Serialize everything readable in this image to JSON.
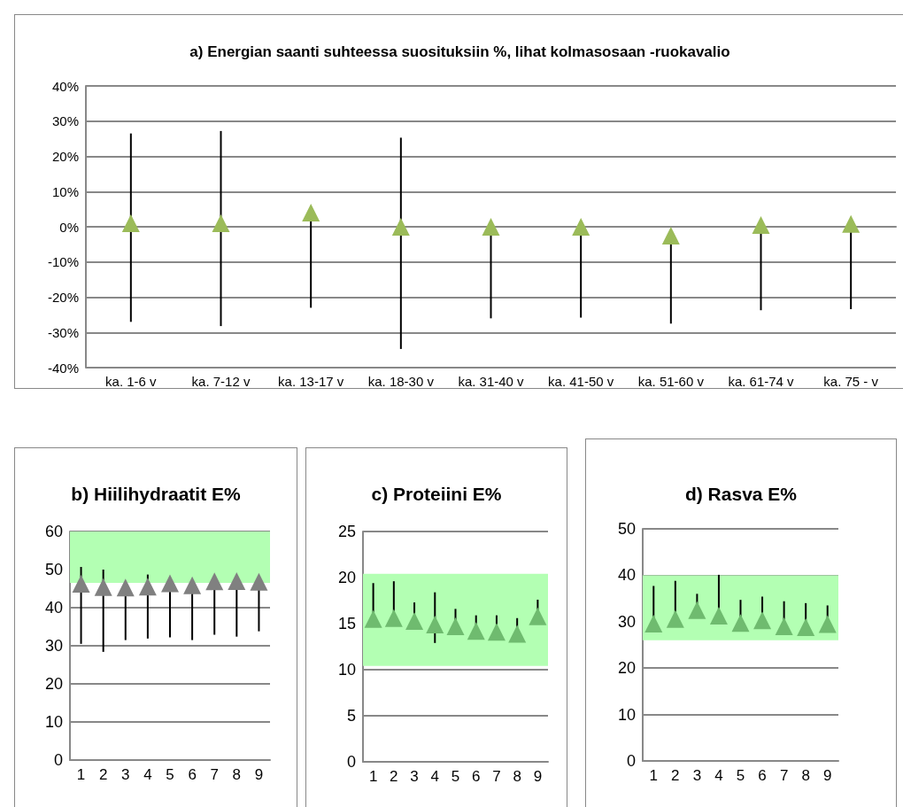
{
  "chart_data": [
    {
      "type": "scatter",
      "title": "a) Energian saanti suhteessa suosituksiin %, lihat kolmasosaan -ruokavalio",
      "categories": [
        "ka. 1-6 v",
        "ka. 7-12 v",
        "ka. 13-17 v",
        "ka. 18-30 v",
        "ka. 31-40 v",
        "ka. 41-50 v",
        "ka. 51-60 v",
        "ka. 61-74 v",
        "ka. 75 - v"
      ],
      "values": [
        1,
        1,
        4,
        0,
        0,
        0,
        -2.5,
        0.5,
        0.8
      ],
      "errors": [
        [
          -27,
          26.5
        ],
        [
          -28.2,
          27.2
        ],
        [
          -23,
          4
        ],
        [
          -34.7,
          25.3
        ],
        [
          -26,
          0
        ],
        [
          -25.8,
          0
        ],
        [
          -27.5,
          -2.5
        ],
        [
          -23.7,
          0.5
        ],
        [
          -23.4,
          0.8
        ]
      ],
      "color": "#9bbb59",
      "marker": "triangle",
      "grid": "y",
      "ylim": [
        -40,
        40
      ],
      "yticks": [
        {
          "value": -40,
          "label": "-40%"
        },
        {
          "value": -30,
          "label": "-30%"
        },
        {
          "value": -20,
          "label": "-20%"
        },
        {
          "value": -10,
          "label": "-10%"
        },
        {
          "value": 0,
          "label": "0%"
        },
        {
          "value": 10,
          "label": "10%"
        },
        {
          "value": 20,
          "label": "20%"
        },
        {
          "value": 30,
          "label": "30%"
        },
        {
          "value": 40,
          "label": "40%"
        }
      ]
    },
    {
      "type": "scatter",
      "title": "b) Hiilihydraatit E%",
      "categories": [
        "1",
        "2",
        "3",
        "4",
        "5",
        "6",
        "7",
        "8",
        "9"
      ],
      "values": [
        46.3,
        45.4,
        45.3,
        45.5,
        46.4,
        45.9,
        46.9,
        47,
        46.8
      ],
      "errors": [
        [
          30.5,
          50.7
        ],
        [
          28.4,
          50
        ],
        [
          31.5,
          45.3
        ],
        [
          31.9,
          48.7
        ],
        [
          32.2,
          46.4
        ],
        [
          31.5,
          45.9
        ],
        [
          32.9,
          46.9
        ],
        [
          32.4,
          47
        ],
        [
          33.8,
          46.8
        ]
      ],
      "color": "#808080",
      "marker": "triangle",
      "grid": "y",
      "ylim": [
        0,
        60
      ],
      "yticks": [
        0,
        10,
        20,
        30,
        40,
        50,
        60
      ],
      "bands": [
        {
          "axis": "y",
          "from": 46.5,
          "to": 60,
          "color": "#b3ffb3"
        }
      ]
    },
    {
      "type": "scatter",
      "title": "c) Proteiini E%",
      "categories": [
        "1",
        "2",
        "3",
        "4",
        "5",
        "6",
        "7",
        "8",
        "9"
      ],
      "values": [
        15.5,
        15.6,
        15.3,
        14.9,
        14.7,
        14.2,
        14.1,
        13.9,
        15.8
      ],
      "errors": [
        [
          15.5,
          19.4
        ],
        [
          15.6,
          19.6
        ],
        [
          15.3,
          17.3
        ],
        [
          12.9,
          18.4
        ],
        [
          14.7,
          16.6
        ],
        [
          14.2,
          15.9
        ],
        [
          14.1,
          15.9
        ],
        [
          13,
          15.6
        ],
        [
          15.8,
          17.6
        ]
      ],
      "color": "#6fbb6f",
      "marker": "triangle",
      "grid": "y",
      "ylim": [
        0,
        25
      ],
      "yticks": [
        0,
        5,
        10,
        15,
        20,
        25
      ],
      "bands": [
        {
          "axis": "y",
          "from": 10.4,
          "to": 20.4,
          "color": "#b3ffb3"
        }
      ]
    },
    {
      "type": "scatter",
      "title": "d) Rasva E%",
      "categories": [
        "1",
        "2",
        "3",
        "4",
        "5",
        "6",
        "7",
        "8",
        "9"
      ],
      "values": [
        29.6,
        30.6,
        32.5,
        31.3,
        29.7,
        30.3,
        29,
        28.8,
        29.5
      ],
      "errors": [
        [
          29.6,
          37.7
        ],
        [
          30.6,
          38.8
        ],
        [
          32.5,
          36
        ],
        [
          31.3,
          40.1
        ],
        [
          29.7,
          34.7
        ],
        [
          30.3,
          35.4
        ],
        [
          29,
          34.4
        ],
        [
          28.8,
          34
        ],
        [
          29.5,
          33.5
        ]
      ],
      "color": "#6fbb6f",
      "marker": "triangle",
      "grid": "y",
      "ylim": [
        0,
        50
      ],
      "yticks": [
        0,
        10,
        20,
        30,
        40,
        50
      ],
      "bands": [
        {
          "axis": "y",
          "from": 26,
          "to": 40,
          "color": "#b3ffb3"
        }
      ]
    }
  ]
}
